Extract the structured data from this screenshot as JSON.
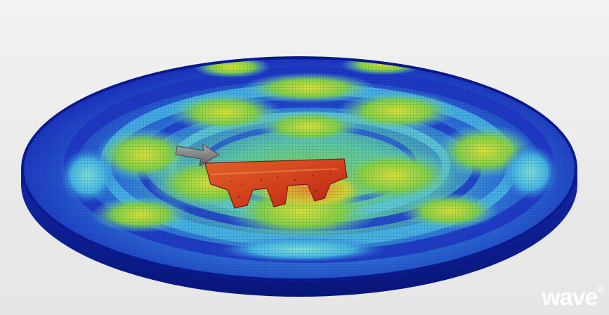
{
  "watermark": {
    "brand": "wave",
    "mark": "®"
  },
  "colors": {
    "background": "#ececec",
    "disc_rim": "#0a1a8c",
    "disc_low": "#1a2fbf",
    "disc_mid": "#2f6fd6",
    "ring_cyan": "#52c6e6",
    "ring_green": "#7ad24a",
    "peak_yellow": "#d9e236",
    "hot_orange": "#e2852c",
    "hot_red": "#cf3b1b",
    "arrow_gray": "#7f7f7f"
  },
  "subject": {
    "object": "wave-simulation-disc",
    "overlay": "mesh-grid",
    "load_indicator": "arrow-icon",
    "part": "red-bracket-part"
  }
}
